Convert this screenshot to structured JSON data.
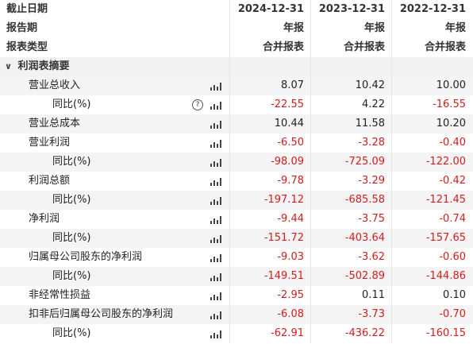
{
  "header": {
    "rows": [
      {
        "label": "截止日期",
        "values": [
          "2024-12-31",
          "2023-12-31",
          "2022-12-31"
        ]
      },
      {
        "label": "报告期",
        "values": [
          "年报",
          "年报",
          "年报"
        ]
      },
      {
        "label": "报表类型",
        "values": [
          "合并报表",
          "合并报表",
          "合并报表"
        ]
      }
    ]
  },
  "section": {
    "label": "利润表摘要",
    "icon": "chevron-down-icon"
  },
  "rows": [
    {
      "label": "营业总收入",
      "indent": 1,
      "help": false,
      "values": [
        "8.07",
        "10.42",
        "10.00"
      ]
    },
    {
      "label": "同比(%)",
      "indent": 2,
      "help": true,
      "values": [
        "-22.55",
        "4.22",
        "-16.55"
      ]
    },
    {
      "label": "营业总成本",
      "indent": 1,
      "help": false,
      "values": [
        "10.44",
        "11.58",
        "10.20"
      ]
    },
    {
      "label": "营业利润",
      "indent": 1,
      "help": false,
      "values": [
        "-6.50",
        "-3.28",
        "-0.40"
      ]
    },
    {
      "label": "同比(%)",
      "indent": 2,
      "help": false,
      "values": [
        "-98.09",
        "-725.09",
        "-122.00"
      ]
    },
    {
      "label": "利润总额",
      "indent": 1,
      "help": false,
      "values": [
        "-9.78",
        "-3.29",
        "-0.42"
      ]
    },
    {
      "label": "同比(%)",
      "indent": 2,
      "help": false,
      "values": [
        "-197.12",
        "-685.58",
        "-121.45"
      ]
    },
    {
      "label": "净利润",
      "indent": 1,
      "help": false,
      "values": [
        "-9.44",
        "-3.75",
        "-0.74"
      ]
    },
    {
      "label": "同比(%)",
      "indent": 2,
      "help": false,
      "values": [
        "-151.72",
        "-403.64",
        "-157.65"
      ]
    },
    {
      "label": "归属母公司股东的净利润",
      "indent": 1,
      "help": false,
      "values": [
        "-9.03",
        "-3.62",
        "-0.60"
      ]
    },
    {
      "label": "同比(%)",
      "indent": 2,
      "help": false,
      "values": [
        "-149.51",
        "-502.89",
        "-144.86"
      ]
    },
    {
      "label": "非经常性损益",
      "indent": 1,
      "help": false,
      "values": [
        "-2.95",
        "0.11",
        "0.10"
      ]
    },
    {
      "label": "扣非后归属母公司股东的净利润",
      "indent": 1,
      "help": false,
      "values": [
        "-6.08",
        "-3.73",
        "-0.70"
      ]
    },
    {
      "label": "同比(%)",
      "indent": 2,
      "help": false,
      "values": [
        "-62.91",
        "-436.22",
        "-160.15"
      ]
    }
  ],
  "icons": {
    "help": "?",
    "chart": "bar-chart-icon"
  },
  "colors": {
    "negative": "#d31c1c",
    "stripe": "#f4f4f4",
    "section": "#f2f2f2"
  }
}
